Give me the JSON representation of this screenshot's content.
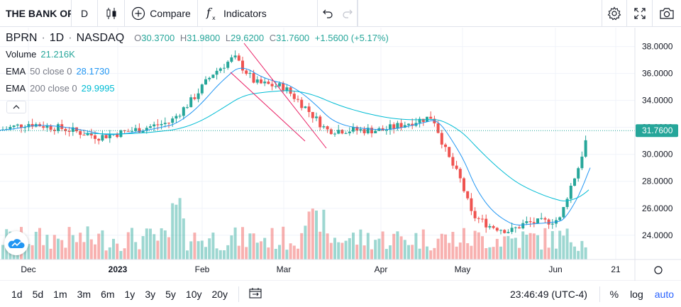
{
  "toolbar": {
    "symbol": "THE BANK OF PRINCETON",
    "interval": "D",
    "compare_label": "Compare",
    "indicators_label": "Indicators"
  },
  "legend": {
    "symbol": "BPRN",
    "interval": "1D",
    "exchange": "NASDAQ",
    "open_label": "O",
    "open": "30.3700",
    "high_label": "H",
    "high": "31.9800",
    "low_label": "L",
    "low": "29.6200",
    "close_label": "C",
    "close": "31.7600",
    "change": "+1.5600 (+5.17%)",
    "volume_label": "Volume",
    "volume": "21.216K",
    "ema50_label": "EMA",
    "ema50_params": "50 close 0",
    "ema50_value": "28.1730",
    "ema200_label": "EMA",
    "ema200_params": "200 close 0",
    "ema200_value": "29.9995"
  },
  "chart_data": {
    "type": "candlestick",
    "price_axis": [
      "38.0000",
      "36.0000",
      "34.0000",
      "32.0000",
      "30.0000",
      "28.0000",
      "26.0000",
      "24.0000"
    ],
    "ylim": [
      22.2,
      39.4
    ],
    "last_price": "31.7600",
    "time_axis": [
      "Dec",
      "2023",
      "Feb",
      "Mar",
      "Apr",
      "May",
      "Jun",
      "21"
    ],
    "colors": {
      "up": "#26a69a",
      "down": "#ef5350",
      "ema50": "#2196f3",
      "ema200": "#00bcd4",
      "trendline": "#e91e63"
    }
  },
  "bottombar": {
    "ranges": [
      "1d",
      "5d",
      "1m",
      "3m",
      "6m",
      "1y",
      "3y",
      "5y",
      "10y",
      "20y"
    ],
    "time": "23:46:49 (UTC-4)",
    "percent": "%",
    "log": "log",
    "auto": "auto"
  }
}
